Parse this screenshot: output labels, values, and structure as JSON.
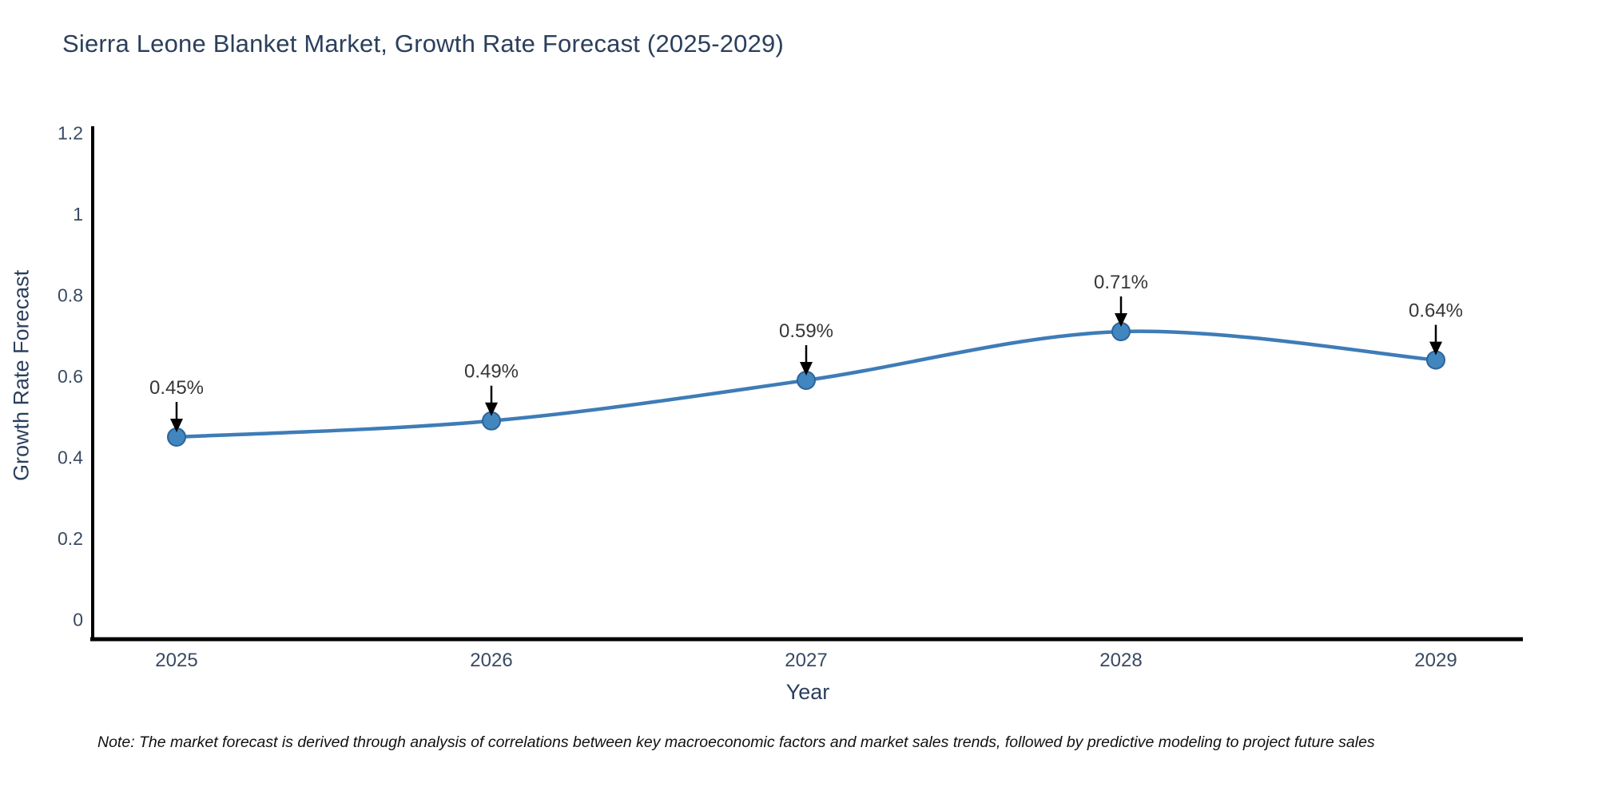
{
  "chart_data": {
    "type": "line",
    "title": "Sierra Leone Blanket Market, Growth Rate Forecast (2025-2029)",
    "xlabel": "Year",
    "ylabel": "Growth Rate Forecast",
    "categories": [
      "2025",
      "2026",
      "2027",
      "2028",
      "2029"
    ],
    "series": [
      {
        "name": "Growth Rate Forecast",
        "values": [
          0.45,
          0.49,
          0.59,
          0.71,
          0.64
        ]
      }
    ],
    "point_labels": [
      "0.45%",
      "0.49%",
      "0.59%",
      "0.71%",
      "0.64%"
    ],
    "ylim": [
      0,
      1.2
    ],
    "yticks": [
      0,
      0.2,
      0.4,
      0.6,
      0.8,
      1,
      1.2
    ],
    "ytick_labels": [
      "0",
      "0.2",
      "0.4",
      "0.6",
      "0.8",
      "1",
      "1.2"
    ],
    "grid": false,
    "legend": "none",
    "curve": "smooth",
    "line_color": "#3e7cb7",
    "marker_color": "#4286bf",
    "marker_edge_color": "#2d6499",
    "axis_color": "#000000",
    "tick_color": "#3a4a63",
    "annotation_color": "#363636",
    "annotation_arrow_color": "#000000"
  },
  "note": "Note: The market forecast is derived through analysis of correlations between key macroeconomic factors and market sales trends, followed by predictive modeling to project future sales"
}
